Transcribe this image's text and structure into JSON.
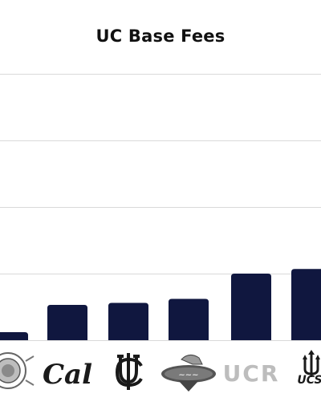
{
  "chart_data": {
    "type": "bar",
    "title": "UC Base Fees",
    "xlabel": "",
    "ylabel": "",
    "categories": [
      "UC Davis",
      "Cal",
      "UC Irvine",
      "UCLA",
      "UCR",
      "UCSD"
    ],
    "values": [
      12,
      53,
      56,
      62,
      100,
      107
    ],
    "ylim": [
      0,
      400
    ],
    "gridlines": [
      100,
      200,
      300,
      400
    ],
    "grid": true,
    "legend": "none",
    "bar_color": "#10173f",
    "gridline_color": "#d9d9d9",
    "tick_labels": [
      "",
      "Cal",
      "",
      "",
      "UCR",
      ""
    ]
  }
}
